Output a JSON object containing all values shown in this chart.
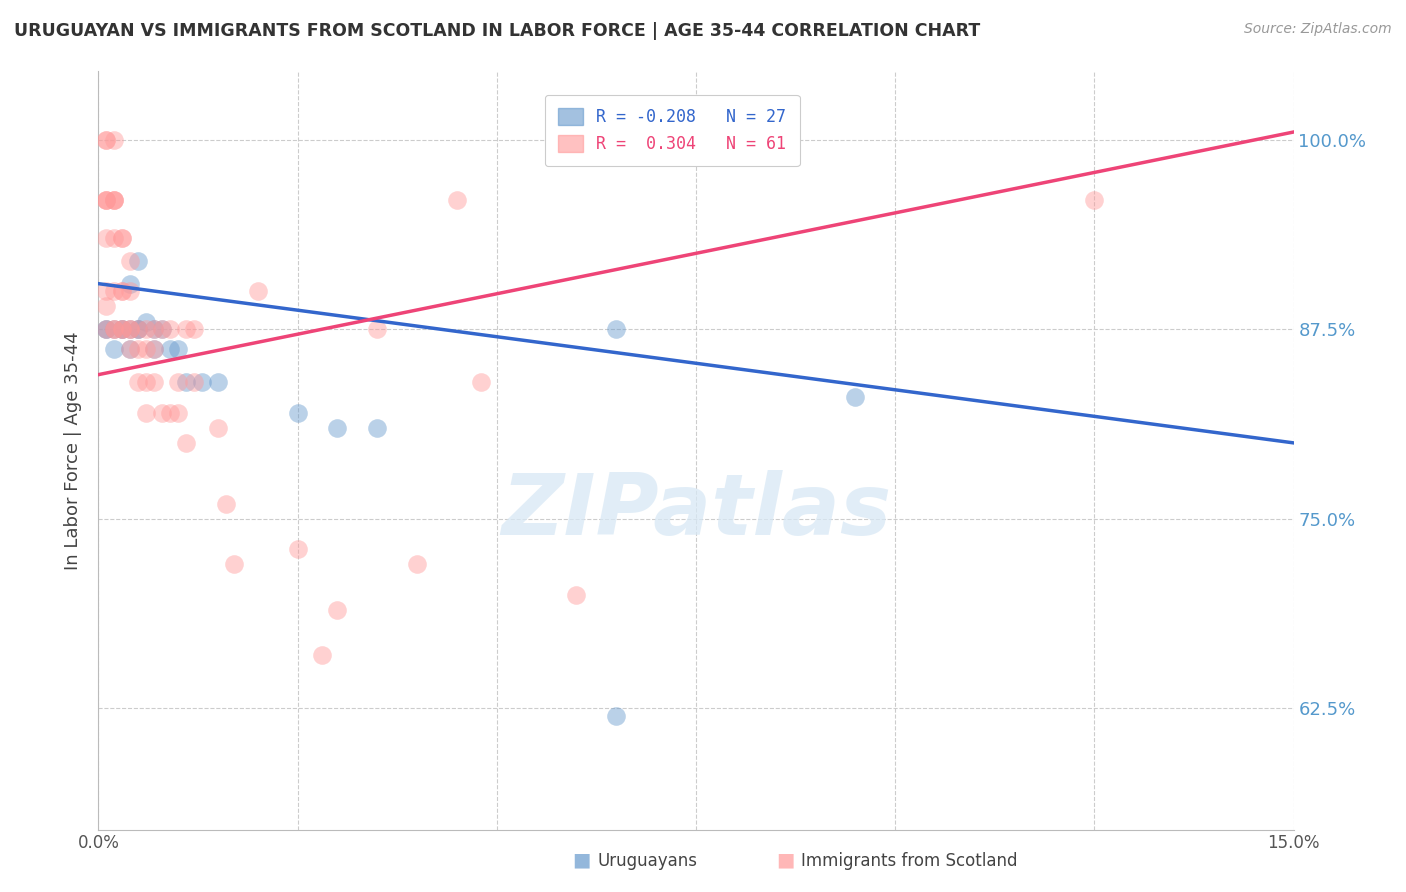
{
  "title": "URUGUAYAN VS IMMIGRANTS FROM SCOTLAND IN LABOR FORCE | AGE 35-44 CORRELATION CHART",
  "source": "Source: ZipAtlas.com",
  "ylabel": "In Labor Force | Age 35-44",
  "xmin": 0.0,
  "xmax": 0.15,
  "ymin": 0.545,
  "ymax": 1.045,
  "yticks": [
    0.625,
    0.75,
    0.875,
    1.0
  ],
  "ytick_labels": [
    "62.5%",
    "75.0%",
    "87.5%",
    "100.0%"
  ],
  "xticks": [
    0.0,
    0.025,
    0.05,
    0.075,
    0.1,
    0.125,
    0.15
  ],
  "xtick_labels": [
    "0.0%",
    "",
    "",
    "",
    "",
    "",
    "15.0%"
  ],
  "blue_label": "Uruguayans",
  "pink_label": "Immigrants from Scotland",
  "blue_R": -0.208,
  "blue_N": 27,
  "pink_R": 0.304,
  "pink_N": 61,
  "blue_color": "#6699CC",
  "pink_color": "#FF9999",
  "blue_line_color": "#3366CC",
  "pink_line_color": "#EE4477",
  "watermark": "ZIPatlas",
  "blue_line": [
    [
      0.0,
      0.905
    ],
    [
      0.15,
      0.8
    ]
  ],
  "pink_line": [
    [
      0.0,
      0.845
    ],
    [
      0.15,
      1.005
    ]
  ],
  "blue_points": [
    [
      0.001,
      0.875
    ],
    [
      0.001,
      0.875
    ],
    [
      0.002,
      0.875
    ],
    [
      0.002,
      0.862
    ],
    [
      0.003,
      0.875
    ],
    [
      0.003,
      0.875
    ],
    [
      0.004,
      0.905
    ],
    [
      0.004,
      0.875
    ],
    [
      0.004,
      0.862
    ],
    [
      0.005,
      0.92
    ],
    [
      0.005,
      0.875
    ],
    [
      0.005,
      0.875
    ],
    [
      0.006,
      0.88
    ],
    [
      0.007,
      0.875
    ],
    [
      0.007,
      0.862
    ],
    [
      0.008,
      0.875
    ],
    [
      0.009,
      0.862
    ],
    [
      0.01,
      0.862
    ],
    [
      0.011,
      0.84
    ],
    [
      0.013,
      0.84
    ],
    [
      0.015,
      0.84
    ],
    [
      0.025,
      0.82
    ],
    [
      0.03,
      0.81
    ],
    [
      0.035,
      0.81
    ],
    [
      0.065,
      0.875
    ],
    [
      0.095,
      0.83
    ],
    [
      0.065,
      0.62
    ]
  ],
  "pink_points": [
    [
      0.001,
      1.0
    ],
    [
      0.001,
      1.0
    ],
    [
      0.001,
      0.96
    ],
    [
      0.001,
      0.96
    ],
    [
      0.001,
      0.96
    ],
    [
      0.001,
      0.935
    ],
    [
      0.001,
      0.9
    ],
    [
      0.001,
      0.89
    ],
    [
      0.001,
      0.875
    ],
    [
      0.002,
      1.0
    ],
    [
      0.002,
      0.96
    ],
    [
      0.002,
      0.96
    ],
    [
      0.002,
      0.96
    ],
    [
      0.002,
      0.935
    ],
    [
      0.002,
      0.9
    ],
    [
      0.002,
      0.875
    ],
    [
      0.002,
      0.875
    ],
    [
      0.003,
      0.935
    ],
    [
      0.003,
      0.935
    ],
    [
      0.003,
      0.9
    ],
    [
      0.003,
      0.9
    ],
    [
      0.003,
      0.875
    ],
    [
      0.003,
      0.875
    ],
    [
      0.004,
      0.92
    ],
    [
      0.004,
      0.9
    ],
    [
      0.004,
      0.875
    ],
    [
      0.004,
      0.875
    ],
    [
      0.004,
      0.862
    ],
    [
      0.005,
      0.875
    ],
    [
      0.005,
      0.862
    ],
    [
      0.005,
      0.84
    ],
    [
      0.006,
      0.875
    ],
    [
      0.006,
      0.862
    ],
    [
      0.006,
      0.84
    ],
    [
      0.006,
      0.82
    ],
    [
      0.007,
      0.875
    ],
    [
      0.007,
      0.862
    ],
    [
      0.007,
      0.84
    ],
    [
      0.008,
      0.875
    ],
    [
      0.008,
      0.82
    ],
    [
      0.009,
      0.875
    ],
    [
      0.009,
      0.82
    ],
    [
      0.01,
      0.84
    ],
    [
      0.01,
      0.82
    ],
    [
      0.011,
      0.875
    ],
    [
      0.011,
      0.8
    ],
    [
      0.012,
      0.875
    ],
    [
      0.012,
      0.84
    ],
    [
      0.015,
      0.81
    ],
    [
      0.016,
      0.76
    ],
    [
      0.017,
      0.72
    ],
    [
      0.02,
      0.9
    ],
    [
      0.025,
      0.73
    ],
    [
      0.028,
      0.66
    ],
    [
      0.03,
      0.69
    ],
    [
      0.035,
      0.875
    ],
    [
      0.04,
      0.72
    ],
    [
      0.045,
      0.96
    ],
    [
      0.048,
      0.84
    ],
    [
      0.06,
      0.7
    ],
    [
      0.125,
      0.96
    ]
  ]
}
